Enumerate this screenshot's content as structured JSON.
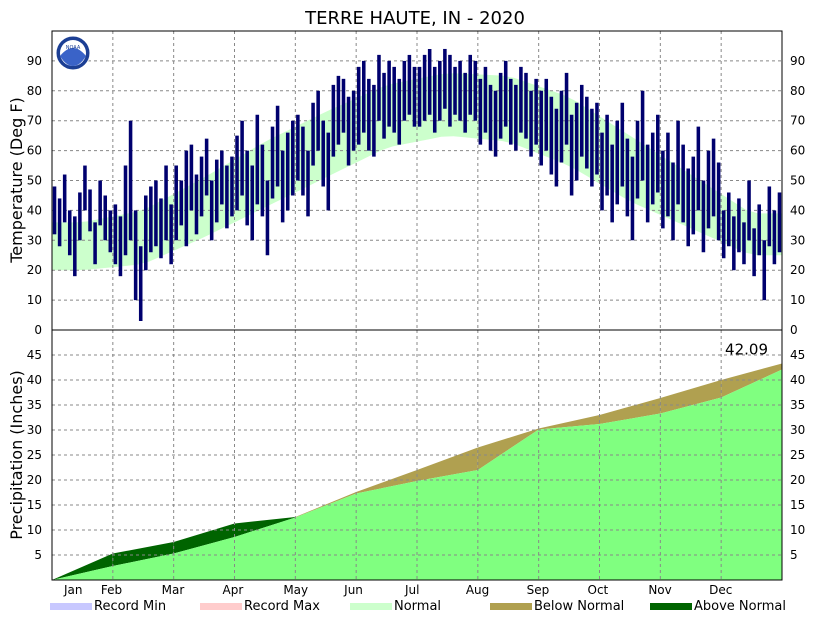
{
  "chart_data": [
    {
      "panel": "temperature",
      "type": "bar",
      "title": "TERRE HAUTE, IN - 2020",
      "ylabel": "Temperature (Deg F)",
      "ylim": [
        0,
        100
      ],
      "yticks": [
        0,
        10,
        20,
        30,
        40,
        50,
        60,
        70,
        80,
        90
      ],
      "x_tick_labels": [
        "Jan",
        "Feb",
        "Mar",
        "Apr",
        "May",
        "Jun",
        "Jul",
        "Aug",
        "Sep",
        "Oct",
        "Nov",
        "Dec"
      ],
      "grid": true,
      "normal_band_monthly": {
        "months": [
          "Jan",
          "Feb",
          "Mar",
          "Apr",
          "May",
          "Jun",
          "Jul",
          "Aug",
          "Sep",
          "Oct",
          "Nov",
          "Dec"
        ],
        "low": [
          20,
          22,
          31,
          41,
          51,
          61,
          65,
          63,
          55,
          43,
          34,
          25
        ],
        "high": [
          36,
          40,
          51,
          63,
          73,
          82,
          86,
          85,
          78,
          65,
          52,
          39
        ]
      },
      "observed_daily_samples": [
        {
          "month": "Jan",
          "low": [
            32,
            28,
            36,
            25,
            18,
            30,
            40,
            33,
            22,
            35,
            30,
            26
          ],
          "high": [
            48,
            44,
            52,
            40,
            38,
            46,
            55,
            47,
            36,
            50,
            45,
            40
          ]
        },
        {
          "month": "Feb",
          "low": [
            22,
            18,
            25,
            30,
            10,
            3,
            20,
            26,
            28,
            24,
            30,
            22
          ],
          "high": [
            42,
            38,
            55,
            70,
            40,
            28,
            45,
            48,
            50,
            44,
            55,
            42
          ]
        },
        {
          "month": "Mar",
          "low": [
            30,
            35,
            28,
            40,
            32,
            38,
            45,
            30,
            36,
            42,
            34,
            38
          ],
          "high": [
            55,
            50,
            60,
            62,
            52,
            58,
            64,
            50,
            57,
            60,
            55,
            58
          ]
        },
        {
          "month": "Apr",
          "low": [
            40,
            45,
            35,
            30,
            42,
            38,
            25,
            44,
            48,
            36,
            40,
            45
          ],
          "high": [
            65,
            70,
            60,
            55,
            72,
            62,
            50,
            68,
            75,
            60,
            66,
            70
          ]
        },
        {
          "month": "May",
          "low": [
            50,
            45,
            38,
            55,
            60,
            48,
            40,
            58,
            62,
            66,
            55,
            60
          ],
          "high": [
            72,
            68,
            60,
            76,
            80,
            70,
            66,
            82,
            85,
            84,
            78,
            80
          ]
        },
        {
          "month": "Jun",
          "low": [
            62,
            66,
            60,
            58,
            70,
            64,
            68,
            66,
            62,
            70,
            72,
            68
          ],
          "high": [
            88,
            90,
            84,
            82,
            92,
            86,
            90,
            88,
            84,
            90,
            92,
            88
          ]
        },
        {
          "month": "Jul",
          "low": [
            68,
            70,
            72,
            66,
            70,
            74,
            68,
            72,
            70,
            66,
            72,
            70
          ],
          "high": [
            88,
            92,
            94,
            88,
            90,
            94,
            92,
            88,
            90,
            86,
            92,
            90
          ]
        },
        {
          "month": "Aug",
          "low": [
            62,
            66,
            60,
            58,
            64,
            68,
            62,
            60,
            66,
            64,
            58,
            62
          ],
          "high": [
            84,
            88,
            82,
            80,
            86,
            90,
            84,
            82,
            88,
            86,
            80,
            84
          ]
        },
        {
          "month": "Sep",
          "low": [
            55,
            60,
            52,
            48,
            56,
            62,
            45,
            50,
            58,
            54,
            48,
            52
          ],
          "high": [
            80,
            84,
            78,
            74,
            80,
            86,
            72,
            76,
            82,
            78,
            74,
            76
          ]
        },
        {
          "month": "Oct",
          "low": [
            40,
            45,
            36,
            42,
            48,
            38,
            30,
            44,
            50,
            36,
            42,
            46
          ],
          "high": [
            66,
            72,
            62,
            70,
            76,
            64,
            58,
            70,
            80,
            62,
            66,
            72
          ]
        },
        {
          "month": "Nov",
          "low": [
            34,
            38,
            30,
            42,
            36,
            28,
            32,
            40,
            26,
            34,
            38,
            30
          ],
          "high": [
            60,
            66,
            56,
            70,
            62,
            54,
            58,
            68,
            50,
            60,
            64,
            56
          ]
        },
        {
          "month": "Dec",
          "low": [
            24,
            28,
            20,
            26,
            22,
            30,
            18,
            25,
            10,
            28,
            22,
            26
          ],
          "high": [
            40,
            46,
            38,
            44,
            36,
            50,
            34,
            42,
            30,
            48,
            40,
            46
          ]
        }
      ]
    },
    {
      "panel": "precipitation",
      "type": "area",
      "ylabel": "Precipitation (Inches)",
      "ylim": [
        0,
        50
      ],
      "yticks": [
        5,
        10,
        15,
        20,
        25,
        30,
        35,
        40,
        45
      ],
      "x_tick_labels": [
        "Jan",
        "Feb",
        "Mar",
        "Apr",
        "May",
        "Jun",
        "Jul",
        "Aug",
        "Sep",
        "Oct",
        "Nov",
        "Dec"
      ],
      "grid": true,
      "cumulative_observed_monthly_end": [
        5.3,
        7.6,
        11.3,
        12.6,
        17.3,
        19.8,
        22.0,
        30.3,
        31.2,
        33.3,
        36.5,
        42.09
      ],
      "cumulative_normal_monthly_end": [
        2.8,
        5.3,
        8.6,
        12.5,
        17.6,
        22.0,
        26.5,
        30.1,
        33.0,
        36.4,
        40.0,
        43.3
      ],
      "final_total_label": "42.09"
    }
  ],
  "legend": [
    {
      "label": "Record Min",
      "color": "#c8c8ff"
    },
    {
      "label": "Record Max",
      "color": "#ffcccc"
    },
    {
      "label": "Normal",
      "color": "#ccffcc"
    },
    {
      "label": "Below Normal",
      "color": "#b0a050"
    },
    {
      "label": "Above Normal",
      "color": "#006400"
    }
  ],
  "colors": {
    "observed_temp": "#00006e",
    "normal_band": "#ccffcc",
    "observed_precip": "#80ff80",
    "below_normal": "#b0a050",
    "above_normal": "#006400"
  },
  "logo": {
    "text": "NOAA"
  }
}
